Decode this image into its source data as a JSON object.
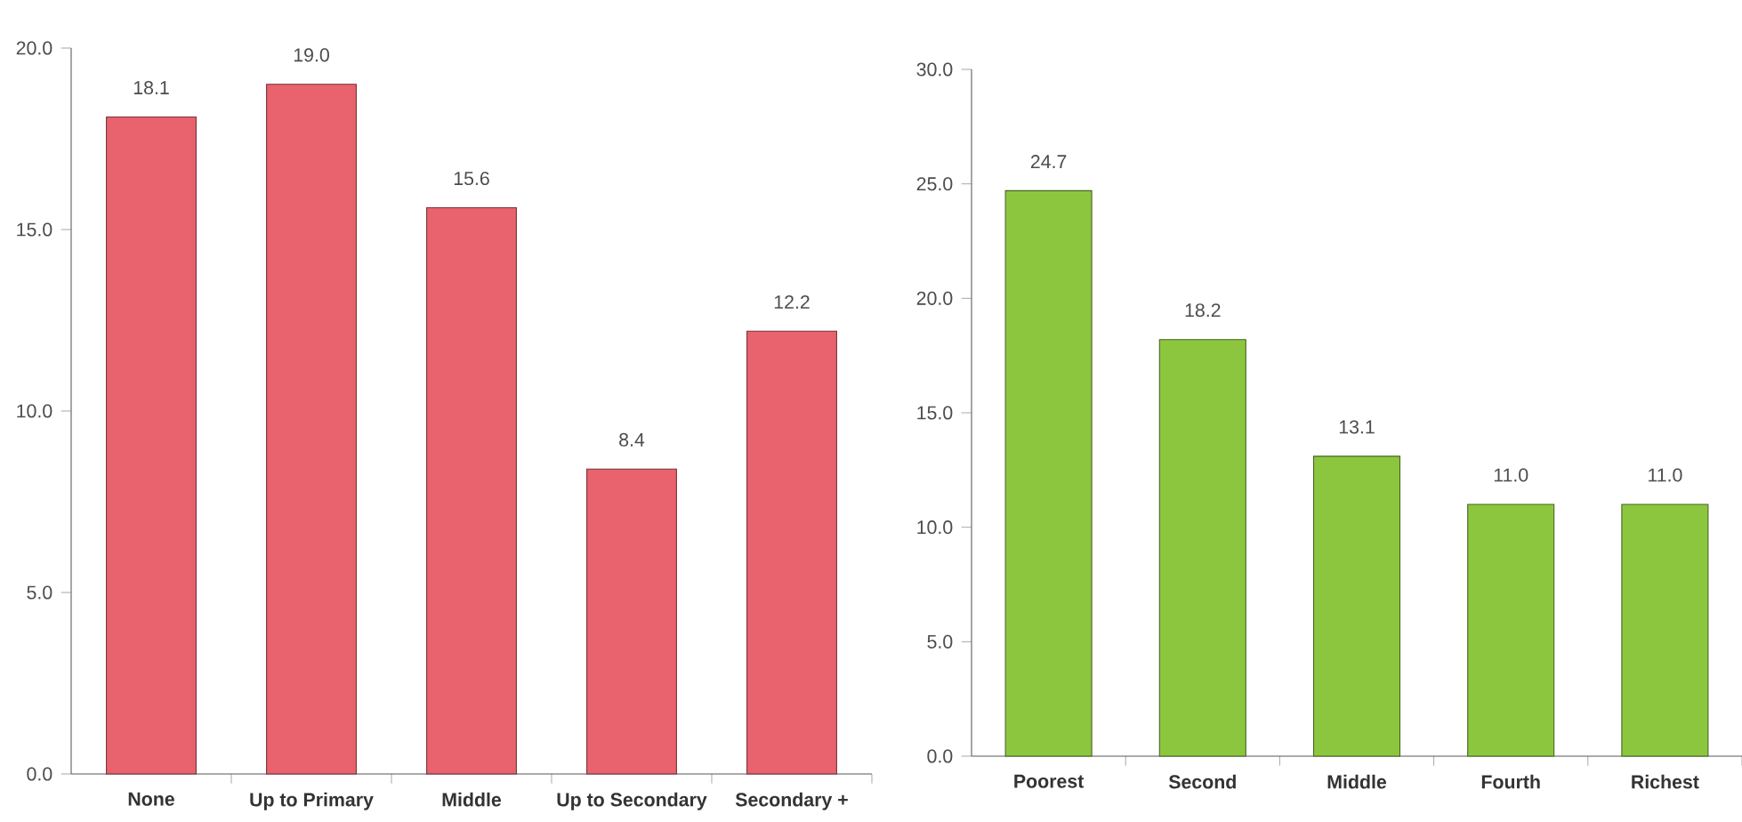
{
  "chart_data": [
    {
      "type": "bar",
      "categories": [
        "None",
        "Up to Primary",
        "Middle",
        "Up to Secondary",
        "Secondary +"
      ],
      "values": [
        18.1,
        19.0,
        15.6,
        8.4,
        12.2
      ],
      "value_labels": [
        "18.1",
        "19.0",
        "15.6",
        "8.4",
        "12.2"
      ],
      "color": "#e8636e",
      "ylim": [
        0,
        20
      ],
      "yticks": [
        {
          "value": 0,
          "label": "0.0"
        },
        {
          "value": 5,
          "label": "5.0"
        },
        {
          "value": 10,
          "label": "10.0"
        },
        {
          "value": 15,
          "label": "15.0"
        },
        {
          "value": 20,
          "label": "20.0"
        }
      ],
      "grid": false
    },
    {
      "type": "bar",
      "categories": [
        "Poorest",
        "Second",
        "Middle",
        "Fourth",
        "Richest"
      ],
      "values": [
        24.7,
        18.2,
        13.1,
        11.0,
        11.0
      ],
      "value_labels": [
        "24.7",
        "18.2",
        "13.1",
        "11.0",
        "11.0"
      ],
      "color": "#8cc63f",
      "ylim": [
        0,
        30
      ],
      "yticks": [
        {
          "value": 0,
          "label": "0.0"
        },
        {
          "value": 5,
          "label": "5.0"
        },
        {
          "value": 10,
          "label": "10.0"
        },
        {
          "value": 15,
          "label": "15.0"
        },
        {
          "value": 20,
          "label": "20.0"
        },
        {
          "value": 25,
          "label": "25.0"
        },
        {
          "value": 30,
          "label": "30.0"
        }
      ],
      "grid": false
    }
  ]
}
